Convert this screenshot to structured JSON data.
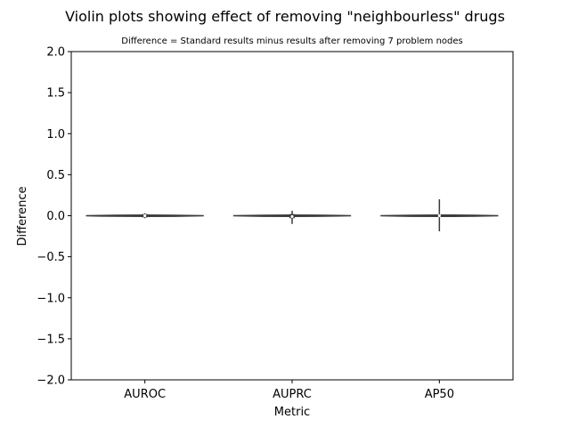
{
  "chart_data": {
    "type": "violin",
    "title": "Violin plots showing effect of removing \"neighbourless\" drugs",
    "subtitle": "Difference = Standard results minus results after removing 7 problem nodes",
    "xlabel": "Metric",
    "ylabel": "Difference",
    "ylim": [
      -2.0,
      2.0
    ],
    "yticks": [
      "−2.0",
      "−1.5",
      "−1.0",
      "−0.5",
      "0.0",
      "0.5",
      "1.0",
      "1.5",
      "2.0"
    ],
    "ytick_values": [
      -2.0,
      -1.5,
      -1.0,
      -0.5,
      0.0,
      0.5,
      1.0,
      1.5,
      2.0
    ],
    "categories": [
      "AUROC",
      "AUPRC",
      "AP50"
    ],
    "grid": false,
    "violins": [
      {
        "category": "AUROC",
        "min": -0.03,
        "q1": -0.02,
        "median": 0.0,
        "q3": 0.02,
        "max": 0.03
      },
      {
        "category": "AUPRC",
        "min": -0.1,
        "q1": -0.03,
        "median": -0.01,
        "q3": 0.02,
        "max": 0.06
      },
      {
        "category": "AP50",
        "min": -0.19,
        "q1": -0.01,
        "median": 0.0,
        "q3": 0.01,
        "max": 0.2
      }
    ],
    "colors": {
      "violin_edge": "#3b3b3b",
      "box": "#3b3b3b",
      "median_marker": "#4caf50"
    }
  }
}
